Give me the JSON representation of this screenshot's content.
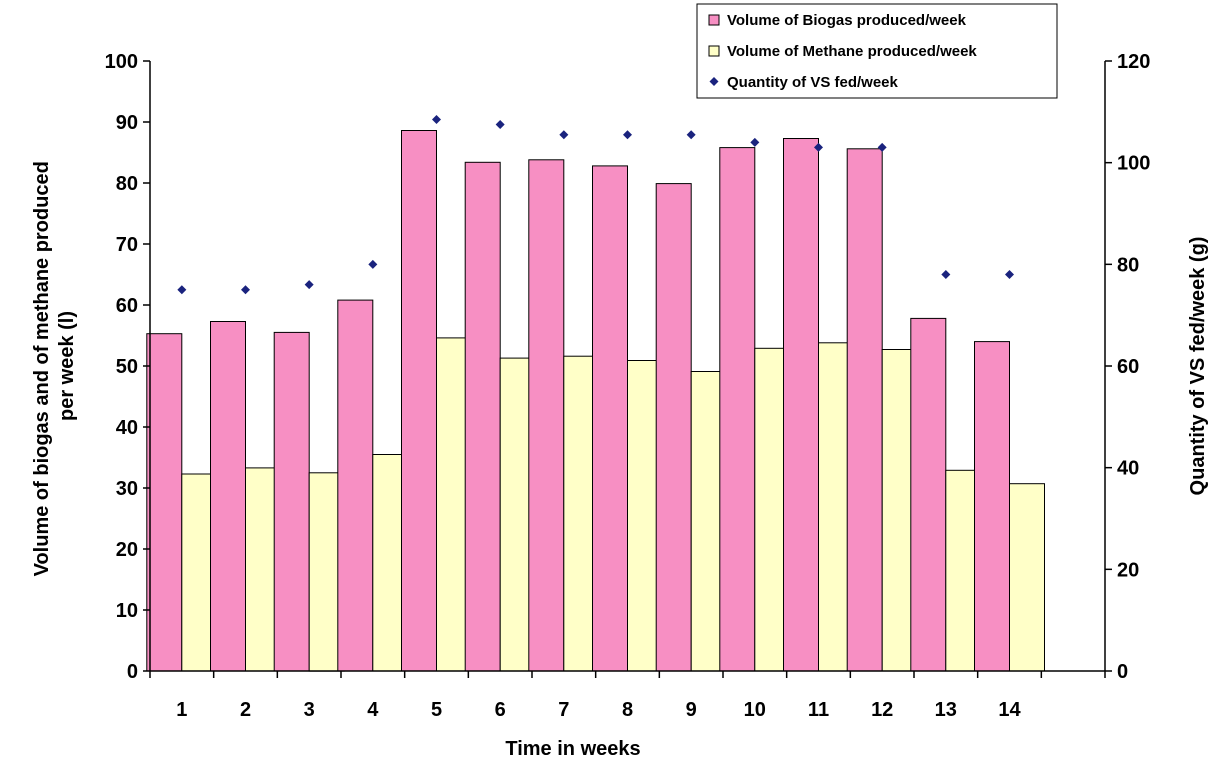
{
  "chart_data": {
    "type": "bar",
    "title": "",
    "xlabel": "Time in weeks",
    "ylabel_lines": [
      "Volume of biogas and of methane produced",
      "per week (l)"
    ],
    "y2label": "Quantity of VS fed/week (g)",
    "categories": [
      "1",
      "2",
      "3",
      "4",
      "5",
      "6",
      "7",
      "8",
      "9",
      "10",
      "11",
      "12",
      "13",
      "14"
    ],
    "ylim": [
      0,
      100
    ],
    "y_ticks": [
      0,
      10,
      20,
      30,
      40,
      50,
      60,
      70,
      80,
      90,
      100
    ],
    "y2lim": [
      0,
      120
    ],
    "y2_ticks": [
      0,
      20,
      40,
      60,
      80,
      100,
      120
    ],
    "grid": false,
    "legend_position": "top-right",
    "series": [
      {
        "name": "Volume of Biogas produced/week",
        "type": "bar",
        "axis": "left",
        "color": "#f78fc3",
        "values": [
          55.3,
          57.3,
          55.5,
          60.8,
          88.6,
          83.4,
          83.8,
          82.8,
          79.9,
          85.8,
          87.3,
          85.6,
          57.8,
          54.0
        ]
      },
      {
        "name": "Volume of Methane produced/week",
        "type": "bar",
        "axis": "left",
        "color": "#ffffc8",
        "values": [
          32.3,
          33.3,
          32.5,
          35.5,
          54.6,
          51.3,
          51.6,
          50.9,
          49.1,
          52.9,
          53.8,
          52.7,
          32.9,
          30.7
        ]
      },
      {
        "name": "Quantity of VS fed/week",
        "type": "scatter",
        "axis": "right",
        "color": "#1a237e",
        "values": [
          75,
          75,
          76,
          80,
          108.5,
          107.5,
          105.5,
          105.5,
          105.5,
          104,
          103,
          103,
          78,
          78
        ]
      }
    ]
  }
}
